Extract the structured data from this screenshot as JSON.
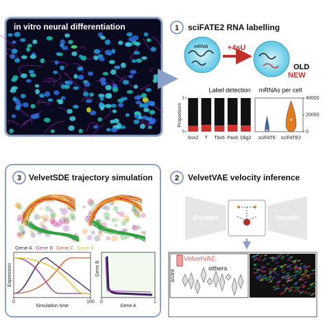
{
  "panel1": {
    "number": "1",
    "title": "sciFATE2 RNA labelling",
    "image_title": "in vitro neural differentiation",
    "mrna": "mRNA",
    "treatment": "+4sU",
    "old": "OLD",
    "new": "NEW"
  },
  "label_detection": {
    "title": "Label detection",
    "ylabel": "Proportions",
    "ylim": [
      0,
      1
    ],
    "yticks": [
      0,
      1
    ],
    "categories": [
      "Sox2",
      "T",
      "Tbx6",
      "Pax6",
      "Olig2"
    ],
    "new_fraction": [
      0.17,
      0.2,
      0.18,
      0.2,
      0.18
    ],
    "old_color": "#111111",
    "new_color": "#d0312d"
  },
  "mrnas_per_cell": {
    "title": "mRNAs per cell",
    "ylim": [
      0,
      40000
    ],
    "yticks": [
      0,
      20000,
      40000
    ],
    "categories": [
      "sciFATE",
      "sciFATE2"
    ],
    "medians": [
      1500,
      14000
    ],
    "colors": [
      "#3b6ea8",
      "#e07b22"
    ]
  },
  "panel3": {
    "number": "3",
    "title": "VelvetSDE trajectory simulation",
    "genes": [
      {
        "name": "Gene A",
        "color": "#3b1f5e"
      },
      {
        "name": "Gene B",
        "color": "#8e3fa0"
      },
      {
        "name": "Gene C",
        "color": "#e0552b"
      },
      {
        "name": "Gene D",
        "color": "#e8b820"
      }
    ],
    "expression_label": "Expression",
    "time_label": "Simulation time",
    "time_ticks": [
      0,
      100
    ],
    "phase_ylabel": "Gene B",
    "phase_xlabel": "Gene A",
    "phase_ticks": [
      0,
      1
    ]
  },
  "panel2": {
    "number": "2",
    "title": "VelvetVAE velocity inference",
    "encoder": "Encoder",
    "decoder": "Decoder",
    "score_label": "score",
    "method": "VelvetVAE",
    "others": "others"
  }
}
